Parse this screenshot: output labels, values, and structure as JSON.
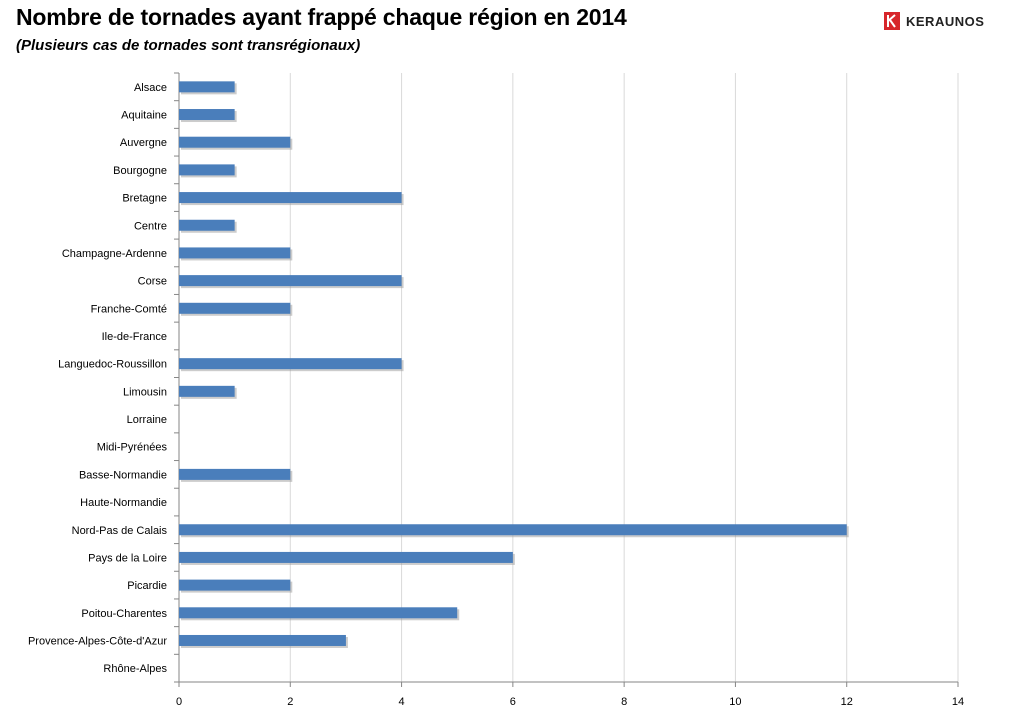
{
  "title": "Nombre de tornades ayant frappé chaque région en 2014",
  "subtitle": "(Plusieurs cas de tornades sont transrégionaux)",
  "logo": {
    "text": "KERAUNOS",
    "icon": "keraunos-logo-icon",
    "color": "#d7262b"
  },
  "chart_data": {
    "type": "bar",
    "orientation": "horizontal",
    "title": "Nombre de tornades ayant frappé chaque région en 2014",
    "subtitle": "(Plusieurs cas de tornades sont transrégionaux)",
    "categories": [
      "Alsace",
      "Aquitaine",
      "Auvergne",
      "Bourgogne",
      "Bretagne",
      "Centre",
      "Champagne-Ardenne",
      "Corse",
      "Franche-Comté",
      "Ile-de-France",
      "Languedoc-Roussillon",
      "Limousin",
      "Lorraine",
      "Midi-Pyrénées",
      "Basse-Normandie",
      "Haute-Normandie",
      "Nord-Pas de Calais",
      "Pays de la Loire",
      "Picardie",
      "Poitou-Charentes",
      "Provence-Alpes-Côte-d'Azur",
      "Rhône-Alpes"
    ],
    "values": [
      1,
      1,
      2,
      1,
      4,
      1,
      2,
      4,
      2,
      0,
      4,
      1,
      0,
      0,
      2,
      0,
      12,
      6,
      2,
      5,
      3,
      0
    ],
    "xlim": [
      0,
      14
    ],
    "xticks": [
      0,
      2,
      4,
      6,
      8,
      10,
      12,
      14
    ],
    "grid": true,
    "bar_color": "#4a7ebb"
  }
}
